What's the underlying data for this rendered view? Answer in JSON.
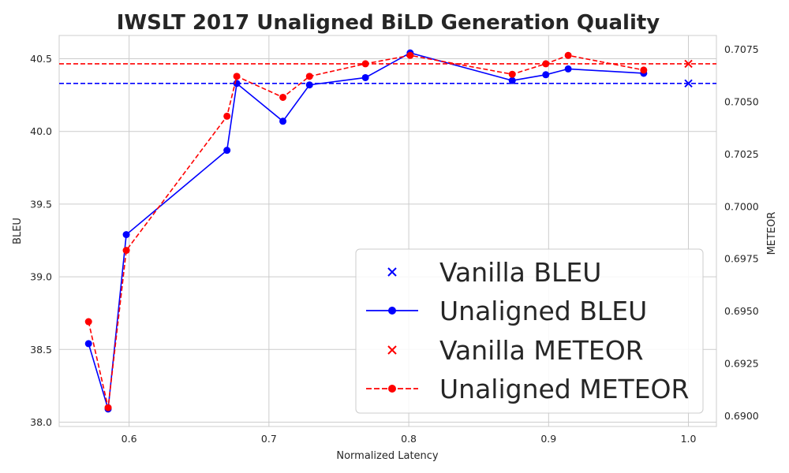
{
  "chart_data": {
    "type": "line",
    "title": "IWSLT 2017 Unaligned BiLD Generation Quality",
    "xlabel": "Normalized Latency",
    "ylabel_left": "BLEU",
    "ylabel_right": "METEOR",
    "xlim": [
      0.55,
      1.02
    ],
    "ylim_left": [
      37.97,
      40.66
    ],
    "ylim_right": [
      0.6895,
      0.70815
    ],
    "xticks": [
      "0.6",
      "0.7",
      "0.8",
      "0.9",
      "1.0"
    ],
    "xtick_values": [
      0.6,
      0.7,
      0.8,
      0.9,
      1.0
    ],
    "yticks_left": [
      "38.0",
      "38.5",
      "39.0",
      "39.5",
      "40.0",
      "40.5"
    ],
    "ytick_values_left": [
      38.0,
      38.5,
      39.0,
      39.5,
      40.0,
      40.5
    ],
    "yticks_right": [
      "0.6900",
      "0.6925",
      "0.6950",
      "0.6975",
      "0.7000",
      "0.7025",
      "0.7050",
      "0.7075"
    ],
    "ytick_values_right": [
      0.69,
      0.6925,
      0.695,
      0.6975,
      0.7,
      0.7025,
      0.705,
      0.7075
    ],
    "grid": true,
    "legend_position": "lower-right",
    "series": [
      {
        "name": "Vanilla BLEU",
        "axis": "left",
        "color": "#0000ff",
        "marker": "x",
        "line": "dashed-horizontal",
        "x": [
          1.0
        ],
        "y": [
          40.33
        ]
      },
      {
        "name": "Unaligned BLEU",
        "axis": "left",
        "color": "#0000ff",
        "marker": "o",
        "line": "solid",
        "x": [
          0.571,
          0.585,
          0.598,
          0.67,
          0.677,
          0.71,
          0.729,
          0.769,
          0.801,
          0.874,
          0.898,
          0.914,
          0.968
        ],
        "y": [
          38.54,
          38.09,
          39.29,
          39.87,
          40.33,
          40.07,
          40.32,
          40.37,
          40.54,
          40.35,
          40.39,
          40.43,
          40.4
        ]
      },
      {
        "name": "Vanilla METEOR",
        "axis": "right",
        "color": "#ff0000",
        "marker": "x",
        "line": "dashed-horizontal",
        "x": [
          1.0
        ],
        "y": [
          0.7068
        ]
      },
      {
        "name": "Unaligned METEOR",
        "axis": "right",
        "color": "#ff0000",
        "marker": "o",
        "line": "dashed",
        "x": [
          0.571,
          0.585,
          0.598,
          0.67,
          0.677,
          0.71,
          0.729,
          0.769,
          0.801,
          0.874,
          0.898,
          0.914,
          0.968
        ],
        "y": [
          0.6945,
          0.6904,
          0.6979,
          0.7043,
          0.7062,
          0.7052,
          0.7062,
          0.7068,
          0.7072,
          0.7063,
          0.7068,
          0.7072,
          0.7065
        ]
      }
    ]
  }
}
